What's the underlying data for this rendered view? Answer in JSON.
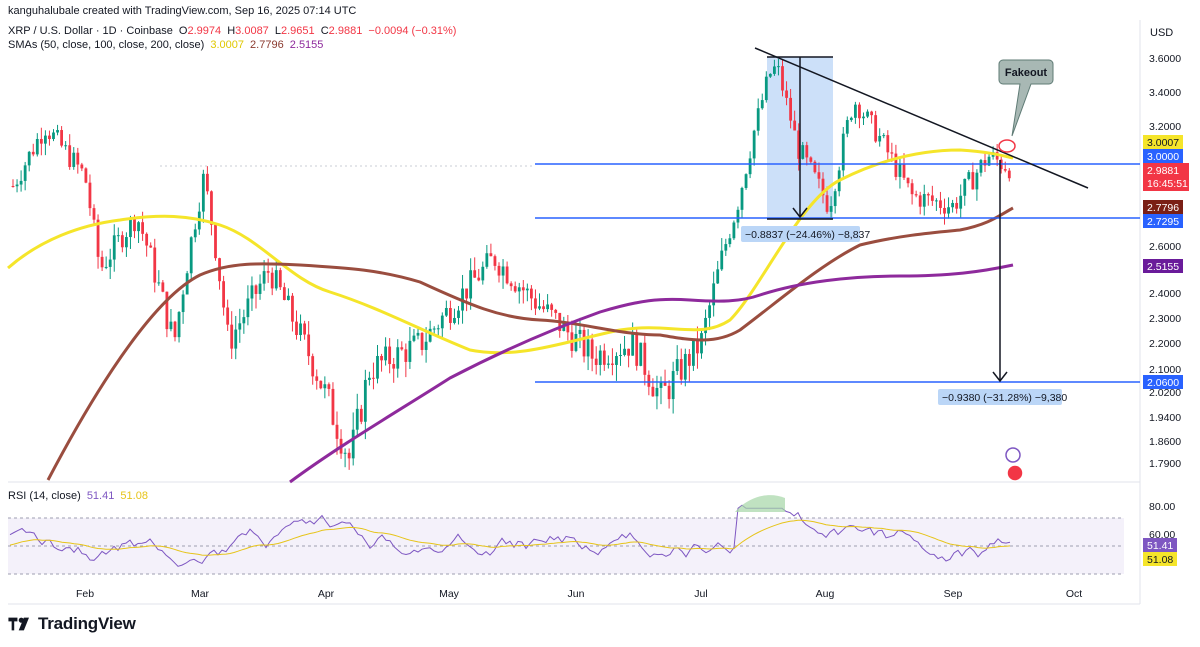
{
  "header": {
    "author_line": "kanguhalubale created with TradingView.com, Sep 16, 2025 07:14 UTC"
  },
  "symbol_legend": {
    "name": "XRP / U.S. Dollar · 1D · Coinbase",
    "o_label": "O",
    "o": "2.9974",
    "h_label": "H",
    "h": "3.0087",
    "l_label": "L",
    "l": "2.9651",
    "c_label": "C",
    "c": "2.9881",
    "change": "−0.0094 (−0.31%)"
  },
  "sma_legend": {
    "name": "SMAs (50, close, 100, close, 200, close)",
    "v50": "3.0007",
    "v100": "2.7796",
    "v200": "2.5155",
    "c50": "#f5e52a",
    "c100": "#8b3a2f",
    "c200": "#8e2a9c"
  },
  "rsi_legend": {
    "name": "RSI (14, close)",
    "v1": "51.41",
    "v2": "51.08",
    "c1": "#7e57c2",
    "c2": "#e6c419"
  },
  "axis": {
    "currency": "USD",
    "price_ticks": [
      "3.6000",
      "3.4000",
      "3.2000",
      "2.6000",
      "2.4000",
      "2.3000",
      "2.2000",
      "2.1000",
      "2.0200",
      "1.9400",
      "1.8600",
      "1.7900"
    ],
    "rsi_ticks": [
      "80.00",
      "60.00"
    ],
    "months": [
      "Feb",
      "Mar",
      "Apr",
      "May",
      "Jun",
      "Jul",
      "Aug",
      "Sep",
      "Oct"
    ]
  },
  "badges": {
    "sma50_price": "3.0007",
    "level_3": "3.0000",
    "last_price": "2.9881",
    "countdown": "16:45:51",
    "sma100_price": "2.7796",
    "level_2729": "2.7295",
    "sma200_price": "2.5155",
    "level_206": "2.0600",
    "rsi_val": "51.41",
    "rsi_ma": "51.08"
  },
  "annotations": {
    "fakeout": "Fakeout",
    "measure1": "−0.8837 (−24.46%) −8,837",
    "measure2": "−0.9380 (−31.28%) −9,380"
  },
  "footer": {
    "brand": "TradingView"
  },
  "chart_data": {
    "type": "candlestick",
    "symbol": "XRP / U.S. Dollar",
    "timeframe": "1D",
    "exchange": "Coinbase",
    "last": {
      "open": 2.9974,
      "high": 3.0087,
      "low": 2.9651,
      "close": 2.9881,
      "change": -0.0094,
      "change_pct": -0.31
    },
    "sma": {
      "50": 3.0007,
      "100": 2.7796,
      "200": 2.5155
    },
    "horizontal_levels": [
      3.0,
      2.7295,
      2.06
    ],
    "rsi": {
      "period": 14,
      "value": 51.41,
      "ma": 51.08
    },
    "price_anchors": [
      {
        "date": "Jan 14",
        "price": 2.9
      },
      {
        "date": "Jan 22",
        "price": 3.2
      },
      {
        "date": "Feb 01",
        "price": 2.95
      },
      {
        "date": "Feb 05",
        "price": 2.5
      },
      {
        "date": "Feb 15",
        "price": 2.75
      },
      {
        "date": "Feb 25",
        "price": 2.2
      },
      {
        "date": "Mar 02",
        "price": 2.95
      },
      {
        "date": "Mar 08",
        "price": 2.2
      },
      {
        "date": "Mar 18",
        "price": 2.5
      },
      {
        "date": "Mar 28",
        "price": 2.15
      },
      {
        "date": "Apr 07",
        "price": 1.8
      },
      {
        "date": "Apr 12",
        "price": 2.1
      },
      {
        "date": "Apr 25",
        "price": 2.2
      },
      {
        "date": "May 12",
        "price": 2.55
      },
      {
        "date": "May 20",
        "price": 2.4
      },
      {
        "date": "Jun 05",
        "price": 2.15
      },
      {
        "date": "Jun 15",
        "price": 2.2
      },
      {
        "date": "Jun 22",
        "price": 2.0
      },
      {
        "date": "Jul 01",
        "price": 2.2
      },
      {
        "date": "Jul 10",
        "price": 2.8
      },
      {
        "date": "Jul 18",
        "price": 3.5
      },
      {
        "date": "Jul 20",
        "price": 3.55
      },
      {
        "date": "Jul 25",
        "price": 3.1
      },
      {
        "date": "Aug 02",
        "price": 2.8
      },
      {
        "date": "Aug 08",
        "price": 3.35
      },
      {
        "date": "Aug 14",
        "price": 3.15
      },
      {
        "date": "Aug 22",
        "price": 2.85
      },
      {
        "date": "Sep 01",
        "price": 2.8
      },
      {
        "date": "Sep 10",
        "price": 3.05
      },
      {
        "date": "Sep 16",
        "price": 2.99
      }
    ]
  }
}
